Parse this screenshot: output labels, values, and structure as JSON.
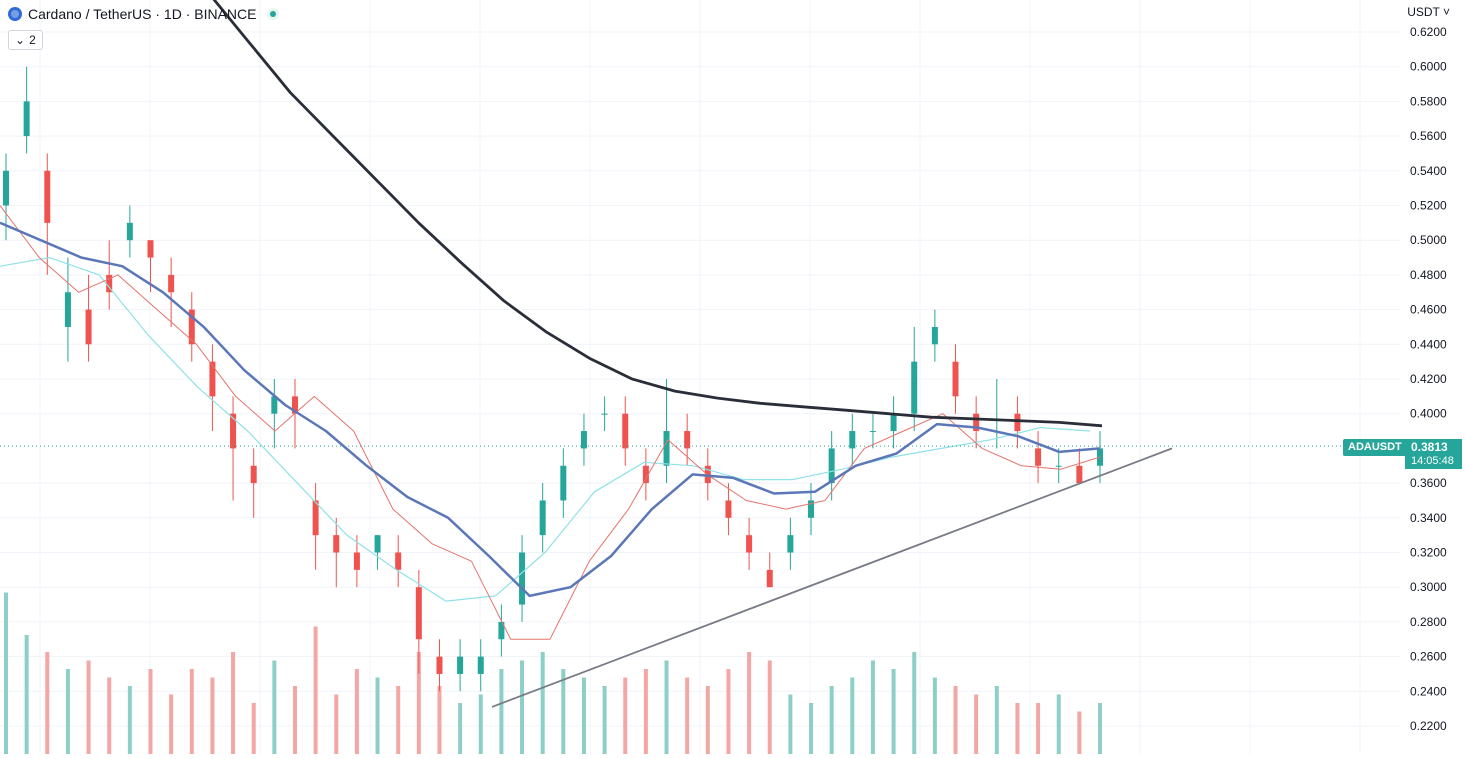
{
  "header": {
    "symbol_title": "Cardano / TetherUS · 1D · BINANCE",
    "indicator_count": "2",
    "currency": "USDT"
  },
  "price_label": {
    "ticker": "ADAUSDT",
    "price": "0.3813",
    "countdown": "14:05:48"
  },
  "colors": {
    "up": "#26a69a",
    "down": "#ef5350",
    "ma_long": "#2a2e39",
    "ma_mid": "#5b77b8",
    "ma_short": "#e5736c",
    "ma_cyan": "#8fe2e8",
    "trendline": "#787b86"
  },
  "chart_data": {
    "type": "candlestick",
    "yaxis_ticks": [
      "0.6200",
      "0.6000",
      "0.5800",
      "0.5600",
      "0.5400",
      "0.5200",
      "0.5000",
      "0.4800",
      "0.4600",
      "0.4400",
      "0.4200",
      "0.4000",
      "0.3600",
      "0.3400",
      "0.3200",
      "0.3000",
      "0.2800",
      "0.2600",
      "0.2400",
      "0.2200"
    ],
    "ylim": [
      0.212,
      0.625
    ],
    "last_price": 0.3813,
    "trendline": [
      [
        0,
        0.231
      ],
      [
        1,
        0.38
      ]
    ],
    "ma_long": [
      0.645,
      0.615,
      0.585,
      0.56,
      0.535,
      0.51,
      0.487,
      0.465,
      0.447,
      0.432,
      0.42,
      0.413,
      0.409,
      0.406,
      0.404,
      0.402,
      0.4,
      0.398,
      0.397,
      0.396,
      0.395,
      0.393
    ],
    "ma_mid": [
      0.51,
      0.5,
      0.49,
      0.485,
      0.47,
      0.45,
      0.425,
      0.405,
      0.39,
      0.37,
      0.352,
      0.34,
      0.318,
      0.295,
      0.3,
      0.318,
      0.345,
      0.365,
      0.363,
      0.354,
      0.355,
      0.37,
      0.377,
      0.394,
      0.392,
      0.387,
      0.378,
      0.38
    ],
    "ma_short": [
      0.52,
      0.49,
      0.47,
      0.48,
      0.46,
      0.44,
      0.41,
      0.39,
      0.41,
      0.39,
      0.345,
      0.325,
      0.315,
      0.27,
      0.27,
      0.315,
      0.345,
      0.385,
      0.365,
      0.35,
      0.345,
      0.35,
      0.38,
      0.39,
      0.4,
      0.38,
      0.37,
      0.368,
      0.375
    ],
    "ma_cyan": [
      0.485,
      0.49,
      0.48,
      0.445,
      0.415,
      0.39,
      0.36,
      0.33,
      0.31,
      0.292,
      0.295,
      0.32,
      0.355,
      0.372,
      0.37,
      0.362,
      0.362,
      0.368,
      0.375,
      0.38,
      0.385,
      0.392,
      0.39
    ],
    "candles": [
      [
        0.52,
        0.54,
        0.5,
        0.55
      ],
      [
        0.56,
        0.58,
        0.55,
        0.6
      ],
      [
        0.54,
        0.51,
        0.48,
        0.55
      ],
      [
        0.45,
        0.47,
        0.43,
        0.49
      ],
      [
        0.46,
        0.44,
        0.43,
        0.48
      ],
      [
        0.48,
        0.47,
        0.46,
        0.5
      ],
      [
        0.5,
        0.51,
        0.49,
        0.52
      ],
      [
        0.5,
        0.49,
        0.47,
        0.5
      ],
      [
        0.48,
        0.47,
        0.45,
        0.49
      ],
      [
        0.46,
        0.44,
        0.43,
        0.47
      ],
      [
        0.43,
        0.41,
        0.39,
        0.44
      ],
      [
        0.4,
        0.38,
        0.35,
        0.41
      ],
      [
        0.37,
        0.36,
        0.34,
        0.38
      ],
      [
        0.4,
        0.41,
        0.38,
        0.42
      ],
      [
        0.41,
        0.4,
        0.38,
        0.42
      ],
      [
        0.35,
        0.33,
        0.31,
        0.36
      ],
      [
        0.33,
        0.32,
        0.3,
        0.34
      ],
      [
        0.32,
        0.31,
        0.3,
        0.33
      ],
      [
        0.32,
        0.33,
        0.31,
        0.33
      ],
      [
        0.32,
        0.31,
        0.3,
        0.33
      ],
      [
        0.3,
        0.27,
        0.25,
        0.31
      ],
      [
        0.26,
        0.25,
        0.24,
        0.27
      ],
      [
        0.25,
        0.26,
        0.24,
        0.27
      ],
      [
        0.25,
        0.26,
        0.24,
        0.27
      ],
      [
        0.27,
        0.28,
        0.26,
        0.29
      ],
      [
        0.29,
        0.32,
        0.28,
        0.33
      ],
      [
        0.33,
        0.35,
        0.32,
        0.36
      ],
      [
        0.35,
        0.37,
        0.34,
        0.38
      ],
      [
        0.38,
        0.39,
        0.37,
        0.4
      ],
      [
        0.4,
        0.4,
        0.39,
        0.41
      ],
      [
        0.4,
        0.38,
        0.37,
        0.41
      ],
      [
        0.37,
        0.36,
        0.35,
        0.38
      ],
      [
        0.37,
        0.39,
        0.36,
        0.42
      ],
      [
        0.39,
        0.38,
        0.37,
        0.4
      ],
      [
        0.37,
        0.36,
        0.35,
        0.38
      ],
      [
        0.35,
        0.34,
        0.33,
        0.36
      ],
      [
        0.33,
        0.32,
        0.31,
        0.34
      ],
      [
        0.31,
        0.3,
        0.3,
        0.32
      ],
      [
        0.32,
        0.33,
        0.31,
        0.34
      ],
      [
        0.34,
        0.35,
        0.33,
        0.36
      ],
      [
        0.36,
        0.38,
        0.35,
        0.39
      ],
      [
        0.38,
        0.39,
        0.37,
        0.4
      ],
      [
        0.39,
        0.39,
        0.38,
        0.4
      ],
      [
        0.39,
        0.4,
        0.38,
        0.41
      ],
      [
        0.4,
        0.43,
        0.39,
        0.45
      ],
      [
        0.44,
        0.45,
        0.43,
        0.46
      ],
      [
        0.43,
        0.41,
        0.4,
        0.44
      ],
      [
        0.4,
        0.39,
        0.38,
        0.41
      ],
      [
        0.39,
        0.39,
        0.38,
        0.42
      ],
      [
        0.4,
        0.39,
        0.38,
        0.41
      ],
      [
        0.38,
        0.37,
        0.36,
        0.39
      ],
      [
        0.37,
        0.37,
        0.36,
        0.38
      ],
      [
        0.37,
        0.36,
        0.36,
        0.38
      ],
      [
        0.37,
        0.38,
        0.36,
        0.39
      ]
    ],
    "volume": [
      0.95,
      0.7,
      0.6,
      0.5,
      0.55,
      0.45,
      0.4,
      0.5,
      0.35,
      0.5,
      0.45,
      0.6,
      0.3,
      0.55,
      0.4,
      0.75,
      0.35,
      0.5,
      0.45,
      0.4,
      0.6,
      0.4,
      0.3,
      0.35,
      0.5,
      0.55,
      0.6,
      0.5,
      0.45,
      0.4,
      0.45,
      0.5,
      0.55,
      0.45,
      0.4,
      0.5,
      0.6,
      0.55,
      0.35,
      0.3,
      0.4,
      0.45,
      0.55,
      0.5,
      0.6,
      0.45,
      0.4,
      0.35,
      0.4,
      0.3,
      0.3,
      0.35,
      0.25,
      0.3
    ]
  }
}
